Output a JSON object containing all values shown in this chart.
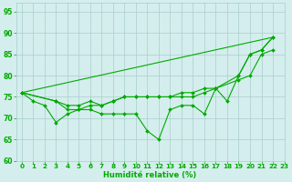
{
  "xlabel": "Humidité relative (%)",
  "bg_color": "#d4eeed",
  "grid_color": "#aacccc",
  "line_color": "#00aa00",
  "xlim": [
    -0.5,
    23
  ],
  "ylim": [
    60,
    97
  ],
  "yticks": [
    60,
    65,
    70,
    75,
    80,
    85,
    90,
    95
  ],
  "xticks": [
    0,
    1,
    2,
    3,
    4,
    5,
    6,
    7,
    8,
    9,
    10,
    11,
    12,
    13,
    14,
    15,
    16,
    17,
    18,
    19,
    20,
    21,
    22,
    23
  ],
  "line1_x": [
    0,
    1,
    2,
    3,
    4,
    5,
    6,
    7,
    8,
    9,
    10,
    11,
    12,
    13,
    14,
    15,
    16,
    17,
    18,
    19,
    20,
    21,
    22
  ],
  "line1_y": [
    76,
    74,
    73,
    69,
    71,
    72,
    72,
    71,
    71,
    71,
    71,
    67,
    65,
    72,
    73,
    73,
    71,
    77,
    74,
    80,
    85,
    86,
    89
  ],
  "line2_x": [
    0,
    3,
    4,
    5,
    6,
    7,
    8,
    9,
    10,
    11,
    12,
    13,
    14,
    15,
    16,
    17,
    19,
    20,
    21,
    22
  ],
  "line2_y": [
    76,
    74,
    73,
    73,
    74,
    73,
    74,
    75,
    75,
    75,
    75,
    75,
    75,
    75,
    76,
    77,
    80,
    85,
    86,
    89
  ],
  "line3_x": [
    0,
    3,
    4,
    5,
    6,
    7,
    8,
    9,
    10,
    11,
    12,
    13,
    14,
    15,
    16,
    17,
    19,
    20,
    21,
    22
  ],
  "line3_y": [
    76,
    74,
    72,
    72,
    73,
    73,
    74,
    75,
    75,
    75,
    75,
    75,
    76,
    76,
    77,
    77,
    79,
    80,
    85,
    86
  ],
  "line4_x": [
    0,
    22
  ],
  "line4_y": [
    76,
    89
  ]
}
